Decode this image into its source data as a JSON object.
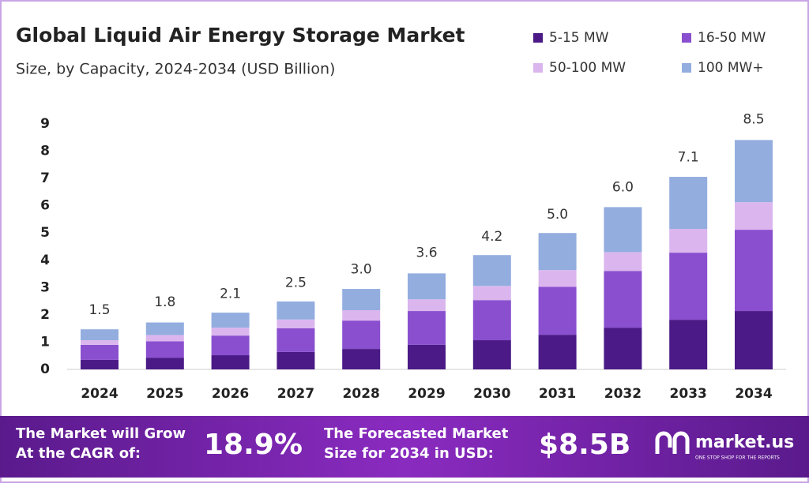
{
  "chart_data": {
    "type": "stacked-bar",
    "title": "Global Liquid Air Energy Storage Market",
    "subtitle": "Size, by Capacity, 2024-2034 (USD Billion)",
    "categories": [
      "2024",
      "2025",
      "2026",
      "2027",
      "2028",
      "2029",
      "2030",
      "2031",
      "2032",
      "2033",
      "2034"
    ],
    "series": [
      {
        "name": "5-15 MW",
        "color": "#4b1a86",
        "values": [
          0.35,
          0.43,
          0.52,
          0.64,
          0.75,
          0.9,
          1.07,
          1.27,
          1.53,
          1.82,
          2.14
        ]
      },
      {
        "name": "16-50 MW",
        "color": "#8a4fcf",
        "values": [
          0.55,
          0.6,
          0.72,
          0.87,
          1.04,
          1.24,
          1.47,
          1.76,
          2.08,
          2.46,
          2.98
        ]
      },
      {
        "name": "50-100 MW",
        "color": "#dbb6ee",
        "values": [
          0.17,
          0.23,
          0.29,
          0.32,
          0.38,
          0.43,
          0.52,
          0.61,
          0.69,
          0.87,
          1.01
        ]
      },
      {
        "name": "100 MW+",
        "color": "#93addf",
        "values": [
          0.4,
          0.46,
          0.55,
          0.66,
          0.78,
          0.95,
          1.13,
          1.36,
          1.65,
          1.91,
          2.28
        ]
      }
    ],
    "totals": [
      1.5,
      1.8,
      2.1,
      2.5,
      3,
      3.6,
      4.2,
      5,
      6,
      7.1,
      8.5
    ],
    "total_labels": [
      "1.5",
      "1.8",
      "2.1",
      "2.5",
      "3.0",
      "3.6",
      "4.2",
      "5.0",
      "6.0",
      "7.1",
      "8.5"
    ],
    "ylim": [
      0,
      9
    ],
    "yticks": [
      0,
      1,
      2,
      3,
      4,
      5,
      6,
      7,
      8,
      9
    ],
    "grid": false
  },
  "footer": {
    "cagr_text_1": "The Market will Grow",
    "cagr_text_2": "At the CAGR of:",
    "cagr_value": "18.9%",
    "forecast_text_1": "The Forecasted Market",
    "forecast_text_2": "Size for 2034 in USD:",
    "forecast_value": "$8.5B",
    "brand": "market.us",
    "tagline": "ONE STOP SHOP FOR THE REPORTS"
  }
}
